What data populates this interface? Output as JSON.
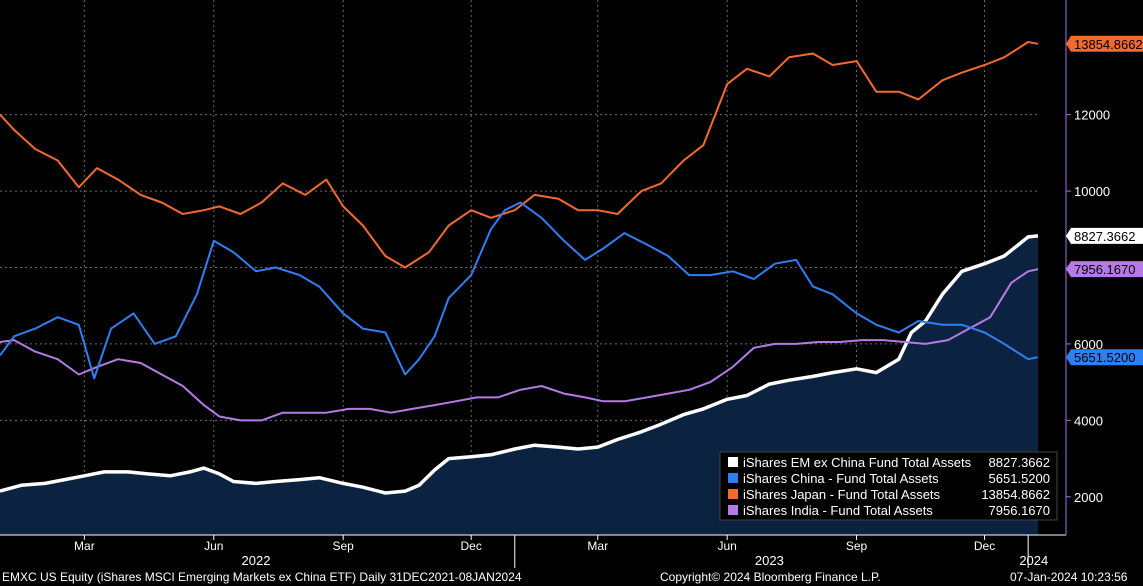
{
  "chart_data": {
    "type": "line",
    "x_range": [
      "2021-12-31",
      "2024-01-08"
    ],
    "ylim": [
      1000,
      15000
    ],
    "yticks": [
      2000,
      4000,
      6000,
      8000,
      10000,
      12000
    ],
    "yticks_position": "right",
    "grid": true,
    "legend_position": "bottom-right",
    "month_ticks": [
      {
        "label": "Mar",
        "date": "2022-03-01"
      },
      {
        "label": "Jun",
        "date": "2022-06-01"
      },
      {
        "label": "Sep",
        "date": "2022-09-01"
      },
      {
        "label": "Dec",
        "date": "2022-12-01"
      },
      {
        "label": "Mar",
        "date": "2023-03-01"
      },
      {
        "label": "Jun",
        "date": "2023-06-01"
      },
      {
        "label": "Sep",
        "date": "2023-09-01"
      },
      {
        "label": "Dec",
        "date": "2023-12-01"
      }
    ],
    "year_labels": [
      {
        "label": "2022",
        "date": "2022-07-01"
      },
      {
        "label": "2023",
        "date": "2023-07-01"
      },
      {
        "label": "2024",
        "date": "2024-01-05"
      }
    ],
    "series": [
      {
        "name": "iShares EM ex China Fund Total Assets",
        "last_value": "8827.3662",
        "color": "#ffffff",
        "fill": "#0b2240",
        "points": [
          [
            "2021-12-31",
            2150
          ],
          [
            "2022-01-15",
            2300
          ],
          [
            "2022-02-01",
            2350
          ],
          [
            "2022-02-15",
            2450
          ],
          [
            "2022-03-01",
            2550
          ],
          [
            "2022-03-15",
            2650
          ],
          [
            "2022-04-01",
            2650
          ],
          [
            "2022-04-15",
            2600
          ],
          [
            "2022-05-01",
            2550
          ],
          [
            "2022-05-15",
            2650
          ],
          [
            "2022-05-25",
            2750
          ],
          [
            "2022-06-05",
            2600
          ],
          [
            "2022-06-15",
            2400
          ],
          [
            "2022-07-01",
            2350
          ],
          [
            "2022-07-15",
            2400
          ],
          [
            "2022-08-01",
            2450
          ],
          [
            "2022-08-15",
            2500
          ],
          [
            "2022-09-01",
            2350
          ],
          [
            "2022-09-15",
            2250
          ],
          [
            "2022-10-01",
            2100
          ],
          [
            "2022-10-15",
            2150
          ],
          [
            "2022-10-25",
            2300
          ],
          [
            "2022-11-05",
            2700
          ],
          [
            "2022-11-15",
            3000
          ],
          [
            "2022-12-01",
            3050
          ],
          [
            "2022-12-15",
            3100
          ],
          [
            "2023-01-01",
            3250
          ],
          [
            "2023-01-15",
            3350
          ],
          [
            "2023-02-01",
            3300
          ],
          [
            "2023-02-15",
            3250
          ],
          [
            "2023-03-01",
            3300
          ],
          [
            "2023-03-15",
            3500
          ],
          [
            "2023-04-01",
            3700
          ],
          [
            "2023-04-15",
            3900
          ],
          [
            "2023-05-01",
            4150
          ],
          [
            "2023-05-15",
            4300
          ],
          [
            "2023-06-01",
            4550
          ],
          [
            "2023-06-15",
            4650
          ],
          [
            "2023-07-01",
            4950
          ],
          [
            "2023-07-15",
            5050
          ],
          [
            "2023-08-01",
            5150
          ],
          [
            "2023-08-15",
            5250
          ],
          [
            "2023-09-01",
            5350
          ],
          [
            "2023-09-15",
            5250
          ],
          [
            "2023-10-01",
            5600
          ],
          [
            "2023-10-10",
            6300
          ],
          [
            "2023-10-20",
            6600
          ],
          [
            "2023-11-01",
            7300
          ],
          [
            "2023-11-15",
            7900
          ],
          [
            "2023-12-01",
            8100
          ],
          [
            "2023-12-15",
            8300
          ],
          [
            "2024-01-01",
            8800
          ],
          [
            "2024-01-08",
            8827.3662
          ]
        ]
      },
      {
        "name": "iShares China - Fund Total Assets",
        "last_value": "5651.5200",
        "color": "#2f7ff2",
        "points": [
          [
            "2021-12-31",
            5700
          ],
          [
            "2022-01-10",
            6200
          ],
          [
            "2022-01-25",
            6400
          ],
          [
            "2022-02-10",
            6700
          ],
          [
            "2022-02-25",
            6500
          ],
          [
            "2022-03-08",
            5100
          ],
          [
            "2022-03-20",
            6400
          ],
          [
            "2022-04-05",
            6800
          ],
          [
            "2022-04-20",
            6000
          ],
          [
            "2022-05-05",
            6200
          ],
          [
            "2022-05-20",
            7300
          ],
          [
            "2022-06-01",
            8700
          ],
          [
            "2022-06-15",
            8400
          ],
          [
            "2022-07-01",
            7900
          ],
          [
            "2022-07-15",
            8000
          ],
          [
            "2022-08-01",
            7800
          ],
          [
            "2022-08-15",
            7500
          ],
          [
            "2022-09-01",
            6800
          ],
          [
            "2022-09-15",
            6400
          ],
          [
            "2022-10-01",
            6300
          ],
          [
            "2022-10-15",
            5200
          ],
          [
            "2022-10-25",
            5600
          ],
          [
            "2022-11-05",
            6200
          ],
          [
            "2022-11-15",
            7200
          ],
          [
            "2022-12-01",
            7800
          ],
          [
            "2022-12-15",
            9000
          ],
          [
            "2022-12-25",
            9500
          ],
          [
            "2023-01-05",
            9700
          ],
          [
            "2023-01-20",
            9300
          ],
          [
            "2023-02-05",
            8700
          ],
          [
            "2023-02-20",
            8200
          ],
          [
            "2023-03-05",
            8500
          ],
          [
            "2023-03-20",
            8900
          ],
          [
            "2023-04-05",
            8600
          ],
          [
            "2023-04-20",
            8300
          ],
          [
            "2023-05-05",
            7800
          ],
          [
            "2023-05-20",
            7800
          ],
          [
            "2023-06-05",
            7900
          ],
          [
            "2023-06-20",
            7700
          ],
          [
            "2023-07-05",
            8100
          ],
          [
            "2023-07-20",
            8200
          ],
          [
            "2023-08-01",
            7500
          ],
          [
            "2023-08-15",
            7300
          ],
          [
            "2023-09-01",
            6800
          ],
          [
            "2023-09-15",
            6500
          ],
          [
            "2023-10-01",
            6300
          ],
          [
            "2023-10-15",
            6600
          ],
          [
            "2023-11-01",
            6500
          ],
          [
            "2023-11-15",
            6500
          ],
          [
            "2023-12-01",
            6300
          ],
          [
            "2023-12-15",
            6000
          ],
          [
            "2024-01-01",
            5600
          ],
          [
            "2024-01-08",
            5651.52
          ]
        ]
      },
      {
        "name": "iShares Japan - Fund Total Assets",
        "last_value": "13854.8662",
        "color": "#f26a30",
        "points": [
          [
            "2021-12-31",
            12000
          ],
          [
            "2022-01-10",
            11600
          ],
          [
            "2022-01-25",
            11100
          ],
          [
            "2022-02-10",
            10800
          ],
          [
            "2022-02-25",
            10100
          ],
          [
            "2022-03-10",
            10600
          ],
          [
            "2022-03-25",
            10300
          ],
          [
            "2022-04-10",
            9900
          ],
          [
            "2022-04-25",
            9700
          ],
          [
            "2022-05-10",
            9400
          ],
          [
            "2022-05-25",
            9500
          ],
          [
            "2022-06-05",
            9600
          ],
          [
            "2022-06-20",
            9400
          ],
          [
            "2022-07-05",
            9700
          ],
          [
            "2022-07-20",
            10200
          ],
          [
            "2022-08-05",
            9900
          ],
          [
            "2022-08-20",
            10300
          ],
          [
            "2022-09-01",
            9600
          ],
          [
            "2022-09-15",
            9100
          ],
          [
            "2022-10-01",
            8300
          ],
          [
            "2022-10-15",
            8000
          ],
          [
            "2022-11-01",
            8400
          ],
          [
            "2022-11-15",
            9100
          ],
          [
            "2022-12-01",
            9500
          ],
          [
            "2022-12-15",
            9300
          ],
          [
            "2023-01-01",
            9500
          ],
          [
            "2023-01-15",
            9900
          ],
          [
            "2023-02-01",
            9800
          ],
          [
            "2023-02-15",
            9500
          ],
          [
            "2023-03-01",
            9500
          ],
          [
            "2023-03-15",
            9400
          ],
          [
            "2023-04-01",
            10000
          ],
          [
            "2023-04-15",
            10200
          ],
          [
            "2023-05-01",
            10800
          ],
          [
            "2023-05-15",
            11200
          ],
          [
            "2023-06-01",
            12800
          ],
          [
            "2023-06-15",
            13200
          ],
          [
            "2023-07-01",
            13000
          ],
          [
            "2023-07-15",
            13500
          ],
          [
            "2023-08-01",
            13600
          ],
          [
            "2023-08-15",
            13300
          ],
          [
            "2023-09-01",
            13400
          ],
          [
            "2023-09-15",
            12600
          ],
          [
            "2023-10-01",
            12600
          ],
          [
            "2023-10-15",
            12400
          ],
          [
            "2023-11-01",
            12900
          ],
          [
            "2023-11-15",
            13100
          ],
          [
            "2023-12-01",
            13300
          ],
          [
            "2023-12-15",
            13500
          ],
          [
            "2024-01-01",
            13900
          ],
          [
            "2024-01-08",
            13854.8662
          ]
        ]
      },
      {
        "name": "iShares India - Fund Total Assets",
        "last_value": "7956.1670",
        "color": "#b57ae8",
        "points": [
          [
            "2021-12-31",
            6050
          ],
          [
            "2022-01-10",
            6100
          ],
          [
            "2022-01-25",
            5800
          ],
          [
            "2022-02-10",
            5600
          ],
          [
            "2022-02-25",
            5200
          ],
          [
            "2022-03-10",
            5400
          ],
          [
            "2022-03-25",
            5600
          ],
          [
            "2022-04-10",
            5500
          ],
          [
            "2022-04-25",
            5200
          ],
          [
            "2022-05-10",
            4900
          ],
          [
            "2022-05-25",
            4400
          ],
          [
            "2022-06-05",
            4100
          ],
          [
            "2022-06-20",
            4000
          ],
          [
            "2022-07-05",
            4000
          ],
          [
            "2022-07-20",
            4200
          ],
          [
            "2022-08-05",
            4200
          ],
          [
            "2022-08-20",
            4200
          ],
          [
            "2022-09-05",
            4300
          ],
          [
            "2022-09-20",
            4300
          ],
          [
            "2022-10-05",
            4200
          ],
          [
            "2022-10-20",
            4300
          ],
          [
            "2022-11-05",
            4400
          ],
          [
            "2022-11-20",
            4500
          ],
          [
            "2022-12-05",
            4600
          ],
          [
            "2022-12-20",
            4600
          ],
          [
            "2023-01-05",
            4800
          ],
          [
            "2023-01-20",
            4900
          ],
          [
            "2023-02-05",
            4700
          ],
          [
            "2023-02-20",
            4600
          ],
          [
            "2023-03-05",
            4500
          ],
          [
            "2023-03-20",
            4500
          ],
          [
            "2023-04-05",
            4600
          ],
          [
            "2023-04-20",
            4700
          ],
          [
            "2023-05-05",
            4800
          ],
          [
            "2023-05-20",
            5000
          ],
          [
            "2023-06-05",
            5400
          ],
          [
            "2023-06-20",
            5900
          ],
          [
            "2023-07-05",
            6000
          ],
          [
            "2023-07-20",
            6000
          ],
          [
            "2023-08-05",
            6050
          ],
          [
            "2023-08-20",
            6050
          ],
          [
            "2023-09-05",
            6100
          ],
          [
            "2023-09-20",
            6100
          ],
          [
            "2023-10-05",
            6050
          ],
          [
            "2023-10-20",
            6000
          ],
          [
            "2023-11-05",
            6100
          ],
          [
            "2023-11-20",
            6400
          ],
          [
            "2023-12-05",
            6700
          ],
          [
            "2023-12-20",
            7600
          ],
          [
            "2024-01-01",
            7900
          ],
          [
            "2024-01-08",
            7956.167
          ]
        ]
      }
    ]
  },
  "footer": {
    "left": "EMXC US Equity (iShares MSCI Emerging Markets ex China ETF)  Daily 31DEC2021-08JAN2024",
    "center": "Copyright© 2024 Bloomberg Finance L.P.",
    "right": "07-Jan-2024 10:23:56"
  }
}
